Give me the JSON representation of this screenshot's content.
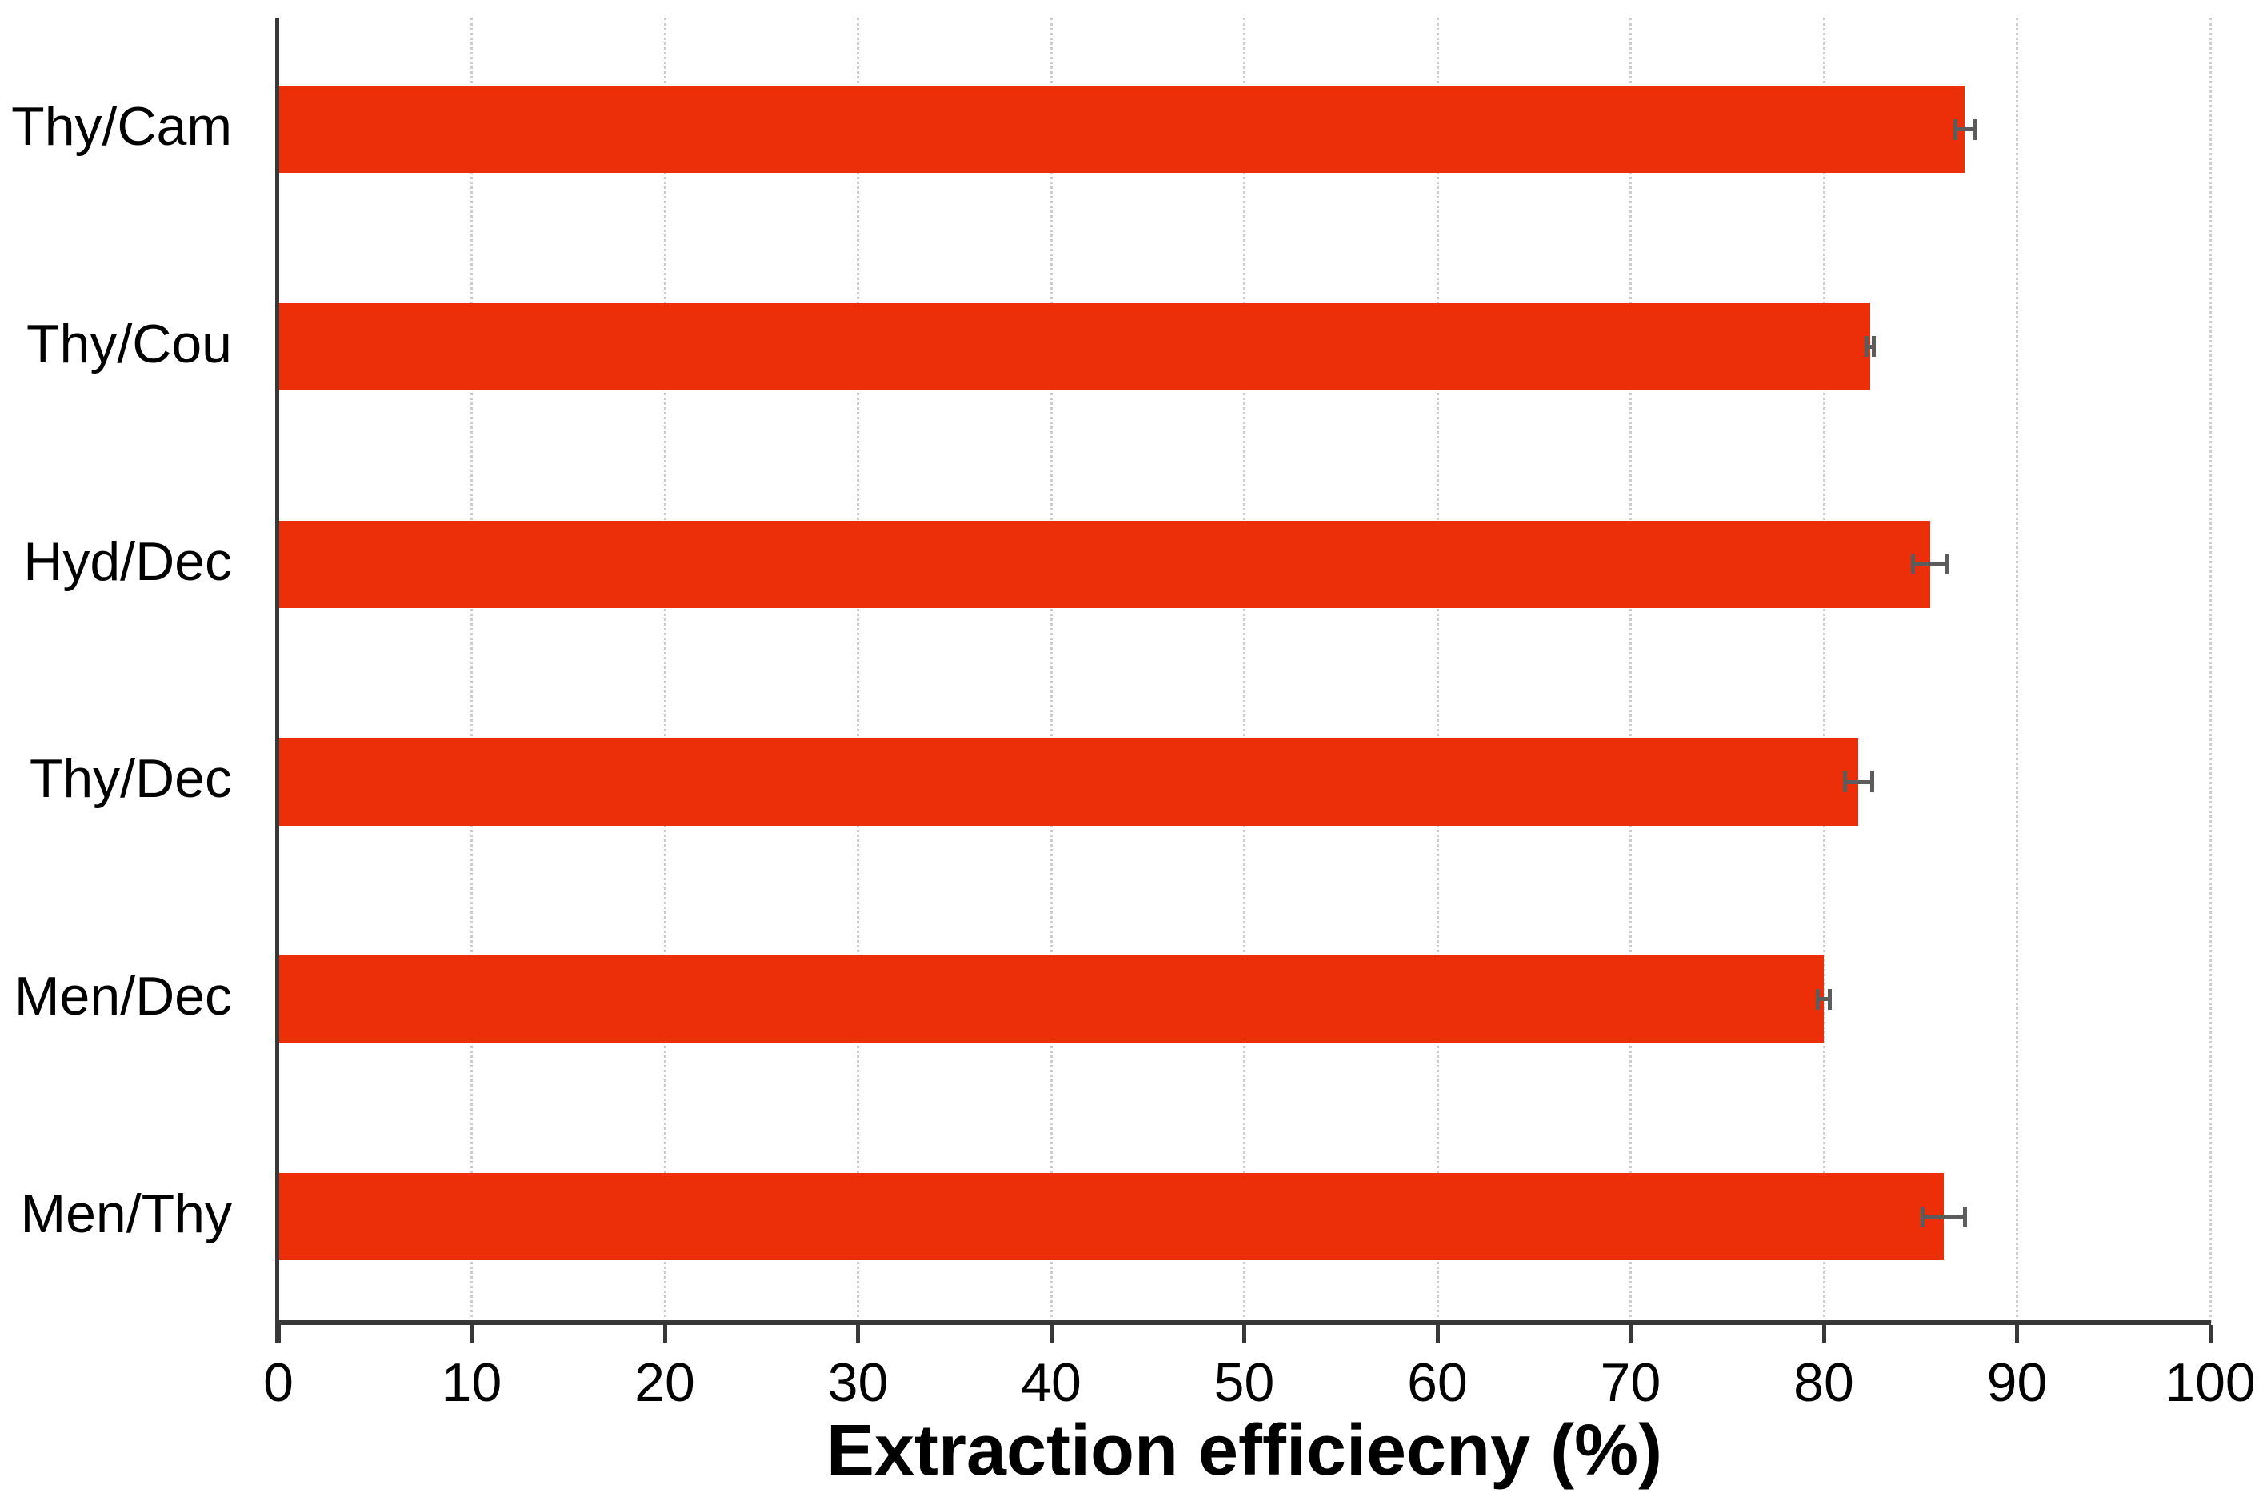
{
  "chart_data": {
    "type": "bar",
    "orientation": "horizontal",
    "title": "",
    "xlabel": "Extraction efficiecny (%)",
    "ylabel": "",
    "categories": [
      "Thy/Cam",
      "Thy/Cou",
      "Hyd/Dec",
      "Thy/Dec",
      "Men/Dec",
      "Men/Thy"
    ],
    "values": [
      87.3,
      82.4,
      85.5,
      81.8,
      80.0,
      86.2
    ],
    "errors": [
      0.6,
      0.3,
      1.0,
      0.8,
      0.4,
      1.2
    ],
    "xlim": [
      0,
      100
    ],
    "xticks": [
      0,
      10,
      20,
      30,
      40,
      50,
      60,
      70,
      80,
      90,
      100
    ],
    "grid": "vertical-dotted",
    "legend": "none",
    "colors": {
      "bar": "#EC2F08",
      "error_bar": "#5C5C5C",
      "axis": "#383838",
      "gridline": "#cdcdcd",
      "text": "#000000",
      "background": "#ffffff"
    }
  }
}
